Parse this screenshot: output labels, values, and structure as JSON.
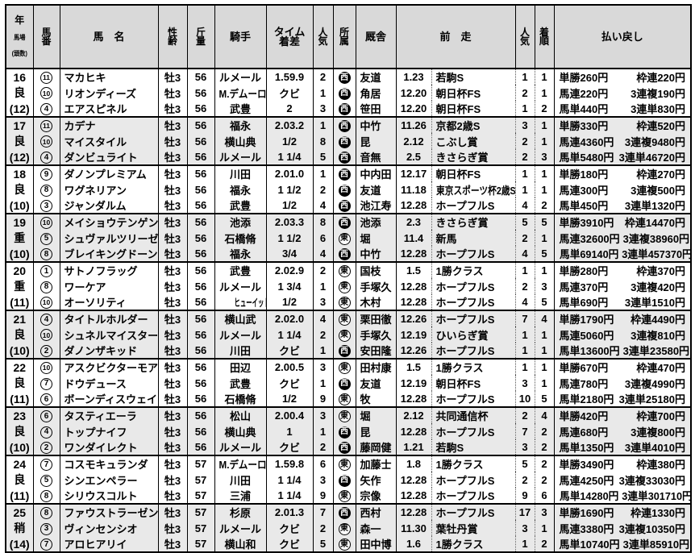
{
  "table": {
    "header": {
      "year": "年",
      "track": "馬場",
      "field_size": "(頭数)",
      "horse_number": "馬\n番",
      "horse_name": "馬　名",
      "sex_age": "性\n齢",
      "weight": "斤\n量",
      "jockey": "騎手",
      "time_margin": "タイム\n着差",
      "popularity": "人\n気",
      "affiliation": "所\n属",
      "stable": "厩舎",
      "previous_race": "前　走",
      "popularity2": "人\n気",
      "finish": "着\n順",
      "payout": "払い戻し"
    },
    "legend": {
      "west": "西",
      "east": "東"
    },
    "colors": {
      "header_bg": "#d9d9d9",
      "stripe_bg": "#e9e9e9",
      "row_bg": "#ffffff",
      "border": "#000000",
      "west_badge_bg": "#000000",
      "west_badge_text": "#ffffff",
      "east_badge_text": "#000000"
    },
    "groups": [
      {
        "year": "16",
        "condition": "良",
        "field_size": "(12)",
        "rows": [
          {
            "num": 11,
            "name": "マカヒキ",
            "sex_age": "牡3",
            "weight": "56",
            "jockey": "ルメール",
            "time_margin": "1.59.9",
            "popularity": "2",
            "region": "西",
            "stable": "友道",
            "prev_date": "1.23",
            "prev_race": "若駒S",
            "prev_popularity": "1",
            "prev_finish": "1",
            "payout": [
              "単勝260円",
              "枠連220円"
            ]
          },
          {
            "num": 10,
            "name": "リオンディーズ",
            "sex_age": "牡3",
            "weight": "56",
            "jockey": "M.デムーロ",
            "time_margin": "クビ",
            "popularity": "1",
            "region": "西",
            "stable": "角居",
            "prev_date": "12.20",
            "prev_race": "朝日杯FS",
            "prev_popularity": "2",
            "prev_finish": "1",
            "payout": [
              "馬連220円",
              "3連複190円"
            ]
          },
          {
            "num": 4,
            "name": "エアスピネル",
            "sex_age": "牡3",
            "weight": "56",
            "jockey": "武豊",
            "time_margin": "2",
            "popularity": "3",
            "region": "西",
            "stable": "笹田",
            "prev_date": "12.20",
            "prev_race": "朝日杯FS",
            "prev_popularity": "1",
            "prev_finish": "2",
            "payout": [
              "馬単440円",
              "3連単830円"
            ]
          }
        ]
      },
      {
        "year": "17",
        "condition": "良",
        "field_size": "(12)",
        "rows": [
          {
            "num": 11,
            "name": "カデナ",
            "sex_age": "牡3",
            "weight": "56",
            "jockey": "福永",
            "time_margin": "2.03.2",
            "popularity": "1",
            "region": "西",
            "stable": "中竹",
            "prev_date": "11.26",
            "prev_race": "京都2歳S",
            "prev_popularity": "3",
            "prev_finish": "1",
            "payout": [
              "単勝330円",
              "枠連520円"
            ]
          },
          {
            "num": 10,
            "name": "マイスタイル",
            "sex_age": "牡3",
            "weight": "56",
            "jockey": "横山典",
            "time_margin": "1/2",
            "popularity": "8",
            "region": "西",
            "stable": "昆",
            "prev_date": "2.12",
            "prev_race": "こぶし賞",
            "prev_popularity": "2",
            "prev_finish": "1",
            "payout": [
              "馬連4360円",
              "3連複9480円"
            ]
          },
          {
            "num": 4,
            "name": "ダンビュライト",
            "sex_age": "牡3",
            "weight": "56",
            "jockey": "ルメール",
            "time_margin": "1 1/4",
            "popularity": "5",
            "region": "西",
            "stable": "音無",
            "prev_date": "2.5",
            "prev_race": "きさらぎ賞",
            "prev_popularity": "2",
            "prev_finish": "3",
            "payout": [
              "馬単5480円",
              "3連単46720円"
            ]
          }
        ]
      },
      {
        "year": "18",
        "condition": "良",
        "field_size": "(10)",
        "rows": [
          {
            "num": 9,
            "name": "ダノンプレミアム",
            "sex_age": "牡3",
            "weight": "56",
            "jockey": "川田",
            "time_margin": "2.01.0",
            "popularity": "1",
            "region": "西",
            "stable": "中内田",
            "prev_date": "12.17",
            "prev_race": "朝日杯FS",
            "prev_popularity": "1",
            "prev_finish": "1",
            "payout": [
              "単勝180円",
              "枠連270円"
            ]
          },
          {
            "num": 8,
            "name": "ワグネリアン",
            "sex_age": "牡3",
            "weight": "56",
            "jockey": "福永",
            "time_margin": "1 1/2",
            "popularity": "2",
            "region": "西",
            "stable": "友道",
            "prev_date": "11.18",
            "prev_race": "東京スポーツ杯2歳S",
            "prev_popularity": "1",
            "prev_finish": "1",
            "payout": [
              "馬連300円",
              "3連複500円"
            ]
          },
          {
            "num": 3,
            "name": "ジャンダルム",
            "sex_age": "牡3",
            "weight": "56",
            "jockey": "武豊",
            "time_margin": "1/2",
            "popularity": "4",
            "region": "西",
            "stable": "池江寿",
            "prev_date": "12.28",
            "prev_race": "ホープフルS",
            "prev_popularity": "4",
            "prev_finish": "2",
            "payout": [
              "馬単450円",
              "3連単1320円"
            ]
          }
        ]
      },
      {
        "year": "19",
        "condition": "重",
        "field_size": "(10)",
        "rows": [
          {
            "num": 10,
            "name": "メイショウテンゲン",
            "sex_age": "牡3",
            "weight": "56",
            "jockey": "池添",
            "time_margin": "2.03.3",
            "popularity": "8",
            "region": "西",
            "stable": "池添",
            "prev_date": "2.3",
            "prev_race": "きさらぎ賞",
            "prev_popularity": "5",
            "prev_finish": "5",
            "payout": [
              "単勝3910円",
              "枠連14470円"
            ]
          },
          {
            "num": 5,
            "name": "シュヴァルツリーゼ",
            "sex_age": "牡3",
            "weight": "56",
            "jockey": "石橋脩",
            "time_margin": "1 1/2",
            "popularity": "6",
            "region": "東",
            "stable": "堀",
            "prev_date": "11.4",
            "prev_race": "新馬",
            "prev_popularity": "2",
            "prev_finish": "1",
            "payout": [
              "馬連32600円",
              "3連複38960円"
            ]
          },
          {
            "num": 8,
            "name": "ブレイキングドーン",
            "sex_age": "牡3",
            "weight": "56",
            "jockey": "福永",
            "time_margin": "3/4",
            "popularity": "4",
            "region": "西",
            "stable": "中竹",
            "prev_date": "12.28",
            "prev_race": "ホープフルS",
            "prev_popularity": "4",
            "prev_finish": "5",
            "payout": [
              "馬単69140円",
              "3連単457370円"
            ]
          }
        ]
      },
      {
        "year": "20",
        "condition": "重",
        "field_size": "(11)",
        "rows": [
          {
            "num": 1,
            "name": "サトノフラッグ",
            "sex_age": "牡3",
            "weight": "56",
            "jockey": "武豊",
            "time_margin": "2.02.9",
            "popularity": "2",
            "region": "東",
            "stable": "国枝",
            "prev_date": "1.5",
            "prev_race": "1勝クラス",
            "prev_popularity": "1",
            "prev_finish": "1",
            "payout": [
              "単勝280円",
              "枠連370円"
            ]
          },
          {
            "num": 8,
            "name": "ワーケア",
            "sex_age": "牡3",
            "weight": "56",
            "jockey": "ルメール",
            "time_margin": "1 3/4",
            "popularity": "1",
            "region": "東",
            "stable": "手塚久",
            "prev_date": "12.28",
            "prev_race": "ホープフルS",
            "prev_popularity": "2",
            "prev_finish": "3",
            "payout": [
              "馬連370円",
              "3連複420円"
            ]
          },
          {
            "num": 10,
            "name": "オーソリティ",
            "sex_age": "牡3",
            "weight": "56",
            "jockey": "ヒューイットソン",
            "time_margin": "1/2",
            "popularity": "3",
            "region": "東",
            "stable": "木村",
            "prev_date": "12.28",
            "prev_race": "ホープフルS",
            "prev_popularity": "4",
            "prev_finish": "5",
            "payout": [
              "馬単690円",
              "3連単1510円"
            ]
          }
        ]
      },
      {
        "year": "21",
        "condition": "良",
        "field_size": "(10)",
        "rows": [
          {
            "num": 4,
            "name": "タイトルホルダー",
            "sex_age": "牡3",
            "weight": "56",
            "jockey": "横山武",
            "time_margin": "2.02.0",
            "popularity": "4",
            "region": "東",
            "stable": "栗田徹",
            "prev_date": "12.26",
            "prev_race": "ホープフルS",
            "prev_popularity": "7",
            "prev_finish": "4",
            "payout": [
              "単勝1790円",
              "枠連4490円"
            ]
          },
          {
            "num": 10,
            "name": "シュネルマイスター",
            "sex_age": "牡3",
            "weight": "56",
            "jockey": "ルメール",
            "time_margin": "1 1/4",
            "popularity": "2",
            "region": "東",
            "stable": "手塚久",
            "prev_date": "12.19",
            "prev_race": "ひいらぎ賞",
            "prev_popularity": "1",
            "prev_finish": "1",
            "payout": [
              "馬連5060円",
              "3連複810円"
            ]
          },
          {
            "num": 2,
            "name": "ダノンザキッド",
            "sex_age": "牡3",
            "weight": "56",
            "jockey": "川田",
            "time_margin": "クビ",
            "popularity": "1",
            "region": "西",
            "stable": "安田隆",
            "prev_date": "12.26",
            "prev_race": "ホープフルS",
            "prev_popularity": "1",
            "prev_finish": "1",
            "payout": [
              "馬単13600円",
              "3連単23580円"
            ]
          }
        ]
      },
      {
        "year": "22",
        "condition": "良",
        "field_size": "(11)",
        "rows": [
          {
            "num": 10,
            "name": "アスクビクターモア",
            "sex_age": "牡3",
            "weight": "56",
            "jockey": "田辺",
            "time_margin": "2.00.5",
            "popularity": "3",
            "region": "東",
            "stable": "田村康",
            "prev_date": "1.5",
            "prev_race": "1勝クラス",
            "prev_popularity": "1",
            "prev_finish": "1",
            "payout": [
              "単勝670円",
              "枠連470円"
            ]
          },
          {
            "num": 7,
            "name": "ドウデュース",
            "sex_age": "牡3",
            "weight": "56",
            "jockey": "武豊",
            "time_margin": "クビ",
            "popularity": "1",
            "region": "西",
            "stable": "友道",
            "prev_date": "12.19",
            "prev_race": "朝日杯FS",
            "prev_popularity": "3",
            "prev_finish": "1",
            "payout": [
              "馬連780円",
              "3連複4990円"
            ]
          },
          {
            "num": 6,
            "name": "ボーンディスウェイ",
            "sex_age": "牡3",
            "weight": "56",
            "jockey": "石橋脩",
            "time_margin": "1/2",
            "popularity": "9",
            "region": "東",
            "stable": "牧",
            "prev_date": "12.28",
            "prev_race": "ホープフルS",
            "prev_popularity": "10",
            "prev_finish": "5",
            "payout": [
              "馬単2180円",
              "3連単25180円"
            ]
          }
        ]
      },
      {
        "year": "23",
        "condition": "良",
        "field_size": "(10)",
        "rows": [
          {
            "num": 6,
            "name": "タスティエーラ",
            "sex_age": "牡3",
            "weight": "56",
            "jockey": "松山",
            "time_margin": "2.00.4",
            "popularity": "3",
            "region": "東",
            "stable": "堀",
            "prev_date": "2.12",
            "prev_race": "共同通信杯",
            "prev_popularity": "2",
            "prev_finish": "4",
            "payout": [
              "単勝420円",
              "枠連700円"
            ]
          },
          {
            "num": 4,
            "name": "トップナイフ",
            "sex_age": "牡3",
            "weight": "56",
            "jockey": "横山典",
            "time_margin": "1",
            "popularity": "1",
            "region": "西",
            "stable": "昆",
            "prev_date": "12.28",
            "prev_race": "ホープフルS",
            "prev_popularity": "7",
            "prev_finish": "2",
            "payout": [
              "馬連680円",
              "3連複800円"
            ]
          },
          {
            "num": 2,
            "name": "ワンダイレクト",
            "sex_age": "牡3",
            "weight": "56",
            "jockey": "ルメール",
            "time_margin": "クビ",
            "popularity": "2",
            "region": "西",
            "stable": "藤岡健",
            "prev_date": "1.21",
            "prev_race": "若駒S",
            "prev_popularity": "3",
            "prev_finish": "2",
            "payout": [
              "馬単1350円",
              "3連単4010円"
            ]
          }
        ]
      },
      {
        "year": "24",
        "condition": "良",
        "field_size": "(11)",
        "rows": [
          {
            "num": 7,
            "name": "コスモキュランダ",
            "sex_age": "牡3",
            "weight": "57",
            "jockey": "M.デムーロ",
            "time_margin": "1.59.8",
            "popularity": "6",
            "region": "東",
            "stable": "加藤士",
            "prev_date": "1.8",
            "prev_race": "1勝クラス",
            "prev_popularity": "5",
            "prev_finish": "2",
            "payout": [
              "単勝3490円",
              "枠連380円"
            ]
          },
          {
            "num": 5,
            "name": "シンエンペラー",
            "sex_age": "牡3",
            "weight": "57",
            "jockey": "川田",
            "time_margin": "1 1/4",
            "popularity": "3",
            "region": "西",
            "stable": "矢作",
            "prev_date": "12.28",
            "prev_race": "ホープフルS",
            "prev_popularity": "2",
            "prev_finish": "2",
            "payout": [
              "馬連4250円",
              "3連複33030円"
            ]
          },
          {
            "num": 8,
            "name": "シリウスコルト",
            "sex_age": "牡3",
            "weight": "57",
            "jockey": "三浦",
            "time_margin": "1 1/4",
            "popularity": "9",
            "region": "東",
            "stable": "宗像",
            "prev_date": "12.28",
            "prev_race": "ホープフルS",
            "prev_popularity": "9",
            "prev_finish": "6",
            "payout": [
              "馬単14280円",
              "3連単301710円"
            ]
          }
        ]
      },
      {
        "year": "25",
        "condition": "稍",
        "field_size": "(14)",
        "rows": [
          {
            "num": 8,
            "name": "ファウストラーゼン",
            "sex_age": "牡3",
            "weight": "57",
            "jockey": "杉原",
            "time_margin": "2.01.3",
            "popularity": "7",
            "region": "西",
            "stable": "西村",
            "prev_date": "12.28",
            "prev_race": "ホープフルS",
            "prev_popularity": "17",
            "prev_finish": "3",
            "payout": [
              "単勝1690円",
              "枠連1330円"
            ]
          },
          {
            "num": 3,
            "name": "ヴィンセンシオ",
            "sex_age": "牡3",
            "weight": "57",
            "jockey": "ルメール",
            "time_margin": "クビ",
            "popularity": "2",
            "region": "東",
            "stable": "森一",
            "prev_date": "11.30",
            "prev_race": "葉牡丹賞",
            "prev_popularity": "3",
            "prev_finish": "1",
            "payout": [
              "馬連3380円",
              "3連複10350円"
            ]
          },
          {
            "num": 7,
            "name": "アロヒアリイ",
            "sex_age": "牡3",
            "weight": "57",
            "jockey": "横山和",
            "time_margin": "クビ",
            "popularity": "5",
            "region": "東",
            "stable": "田中博",
            "prev_date": "1.6",
            "prev_race": "1勝クラス",
            "prev_popularity": "1",
            "prev_finish": "2",
            "payout": [
              "馬単10740円",
              "3連単85910円"
            ]
          }
        ]
      }
    ]
  }
}
